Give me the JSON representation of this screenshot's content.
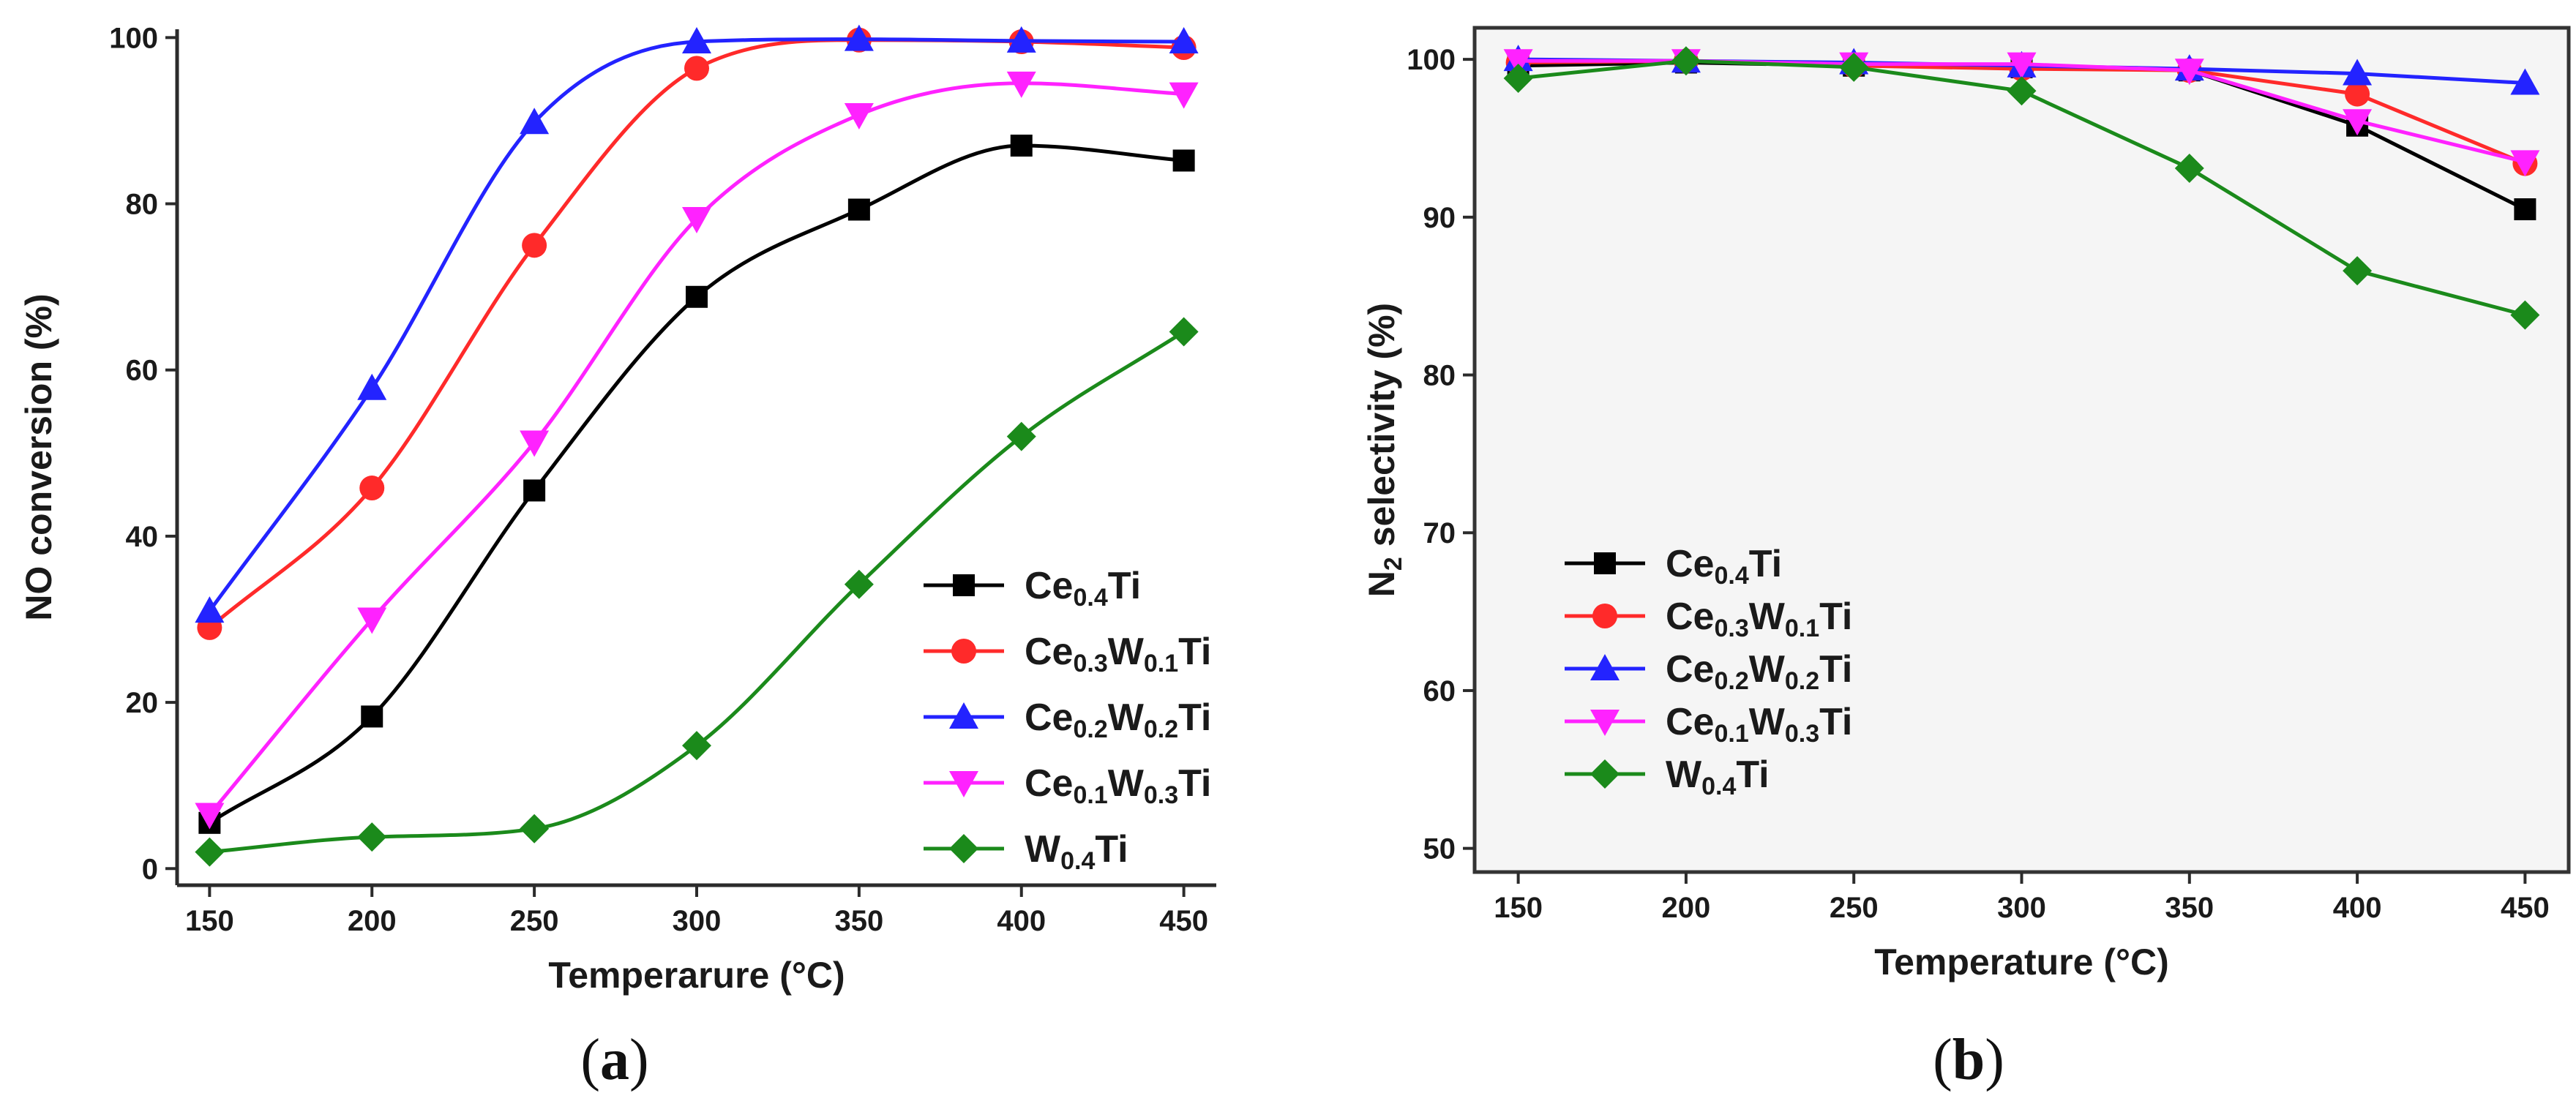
{
  "chart_data": [
    {
      "id": "a",
      "type": "scatter",
      "caption": "(a)",
      "xlabel": "Temperarure (°C)",
      "ylabel": "NO conversion (%)",
      "xlim": [
        140,
        460
      ],
      "ylim": [
        -2,
        101
      ],
      "xticks": [
        150,
        200,
        250,
        300,
        350,
        400,
        450
      ],
      "yticks": [
        0,
        20,
        40,
        60,
        80,
        100
      ],
      "x": [
        150,
        200,
        250,
        300,
        350,
        400,
        450
      ],
      "curve_style": "smooth fit",
      "legend_position": "lower-right",
      "series": [
        {
          "name": "Ce0.4Ti",
          "legend_parts": [
            [
              "Ce",
              false
            ],
            [
              "0.4",
              true
            ],
            [
              "Ti",
              false
            ]
          ],
          "color": "#000000",
          "marker": "square",
          "values": [
            5.5,
            18.3,
            45.5,
            68.8,
            79.3,
            87.0,
            85.2
          ]
        },
        {
          "name": "Ce0.3W0.1Ti",
          "legend_parts": [
            [
              "Ce",
              false
            ],
            [
              "0.3",
              true
            ],
            [
              "W",
              false
            ],
            [
              "0.1",
              true
            ],
            [
              "Ti",
              false
            ]
          ],
          "color": "#ff2a2a",
          "marker": "circle",
          "values": [
            29.0,
            45.8,
            75.0,
            96.3,
            99.7,
            99.5,
            98.8
          ]
        },
        {
          "name": "Ce0.2W0.2Ti",
          "legend_parts": [
            [
              "Ce",
              false
            ],
            [
              "0.2",
              true
            ],
            [
              "W",
              false
            ],
            [
              "0.2",
              true
            ],
            [
              "Ti",
              false
            ]
          ],
          "color": "#2323ff",
          "marker": "triangle-up",
          "values": [
            31.0,
            57.8,
            89.8,
            99.5,
            99.8,
            99.6,
            99.5
          ]
        },
        {
          "name": "Ce0.1W0.3Ti",
          "legend_parts": [
            [
              "Ce",
              false
            ],
            [
              "0.1",
              true
            ],
            [
              "W",
              false
            ],
            [
              "0.3",
              true
            ],
            [
              "Ti",
              false
            ]
          ],
          "color": "#ff22ff",
          "marker": "triangle-down",
          "values": [
            6.5,
            30.0,
            51.3,
            78.2,
            90.7,
            94.5,
            93.2
          ]
        },
        {
          "name": "W0.4Ti",
          "legend_parts": [
            [
              "W",
              false
            ],
            [
              "0.4",
              true
            ],
            [
              "Ti",
              false
            ]
          ],
          "color": "#1b8a1b",
          "marker": "diamond",
          "values": [
            2.0,
            3.8,
            4.8,
            14.8,
            34.2,
            52.0,
            64.6
          ]
        }
      ]
    },
    {
      "id": "b",
      "type": "line",
      "caption": "(b)",
      "xlabel": "Temperature (°C)",
      "ylabel": "N2 selectivity (%)",
      "ylabel_parts": [
        [
          "N",
          false
        ],
        [
          "2",
          true
        ],
        [
          " selectivity (%)",
          false
        ]
      ],
      "xlim": [
        137,
        463
      ],
      "ylim": [
        48.5,
        102
      ],
      "xticks": [
        150,
        200,
        250,
        300,
        350,
        400,
        450
      ],
      "yticks": [
        50,
        60,
        70,
        80,
        90,
        100
      ],
      "x": [
        150,
        200,
        250,
        300,
        350,
        400,
        450
      ],
      "curve_style": "straight segments",
      "legend_position": "lower-left",
      "series": [
        {
          "name": "Ce0.4Ti",
          "legend_parts": [
            [
              "Ce",
              false
            ],
            [
              "0.4",
              true
            ],
            [
              "Ti",
              false
            ]
          ],
          "color": "#000000",
          "marker": "square",
          "values": [
            99.6,
            99.8,
            99.6,
            99.5,
            99.3,
            95.8,
            90.5
          ]
        },
        {
          "name": "Ce0.3W0.1Ti",
          "legend_parts": [
            [
              "Ce",
              false
            ],
            [
              "0.3",
              true
            ],
            [
              "W",
              false
            ],
            [
              "0.1",
              true
            ],
            [
              "Ti",
              false
            ]
          ],
          "color": "#ff2a2a",
          "marker": "circle",
          "values": [
            99.8,
            99.9,
            99.6,
            99.4,
            99.3,
            97.8,
            93.4
          ]
        },
        {
          "name": "Ce0.2W0.2Ti",
          "legend_parts": [
            [
              "Ce",
              false
            ],
            [
              "0.2",
              true
            ],
            [
              "W",
              false
            ],
            [
              "0.2",
              true
            ],
            [
              "Ti",
              false
            ]
          ],
          "color": "#2323ff",
          "marker": "triangle-up",
          "values": [
            100.0,
            99.9,
            99.8,
            99.6,
            99.4,
            99.1,
            98.5
          ]
        },
        {
          "name": "Ce0.1W0.3Ti",
          "legend_parts": [
            [
              "Ce",
              false
            ],
            [
              "0.1",
              true
            ],
            [
              "W",
              false
            ],
            [
              "0.3",
              true
            ],
            [
              "Ti",
              false
            ]
          ],
          "color": "#ff22ff",
          "marker": "triangle-down",
          "values": [
            99.9,
            99.9,
            99.7,
            99.7,
            99.3,
            96.1,
            93.5
          ]
        },
        {
          "name": "W0.4Ti",
          "legend_parts": [
            [
              "W",
              false
            ],
            [
              "0.4",
              true
            ],
            [
              "Ti",
              false
            ]
          ],
          "color": "#1b8a1b",
          "marker": "diamond",
          "values": [
            98.8,
            99.9,
            99.5,
            98.0,
            93.1,
            86.6,
            83.8
          ]
        }
      ]
    }
  ]
}
